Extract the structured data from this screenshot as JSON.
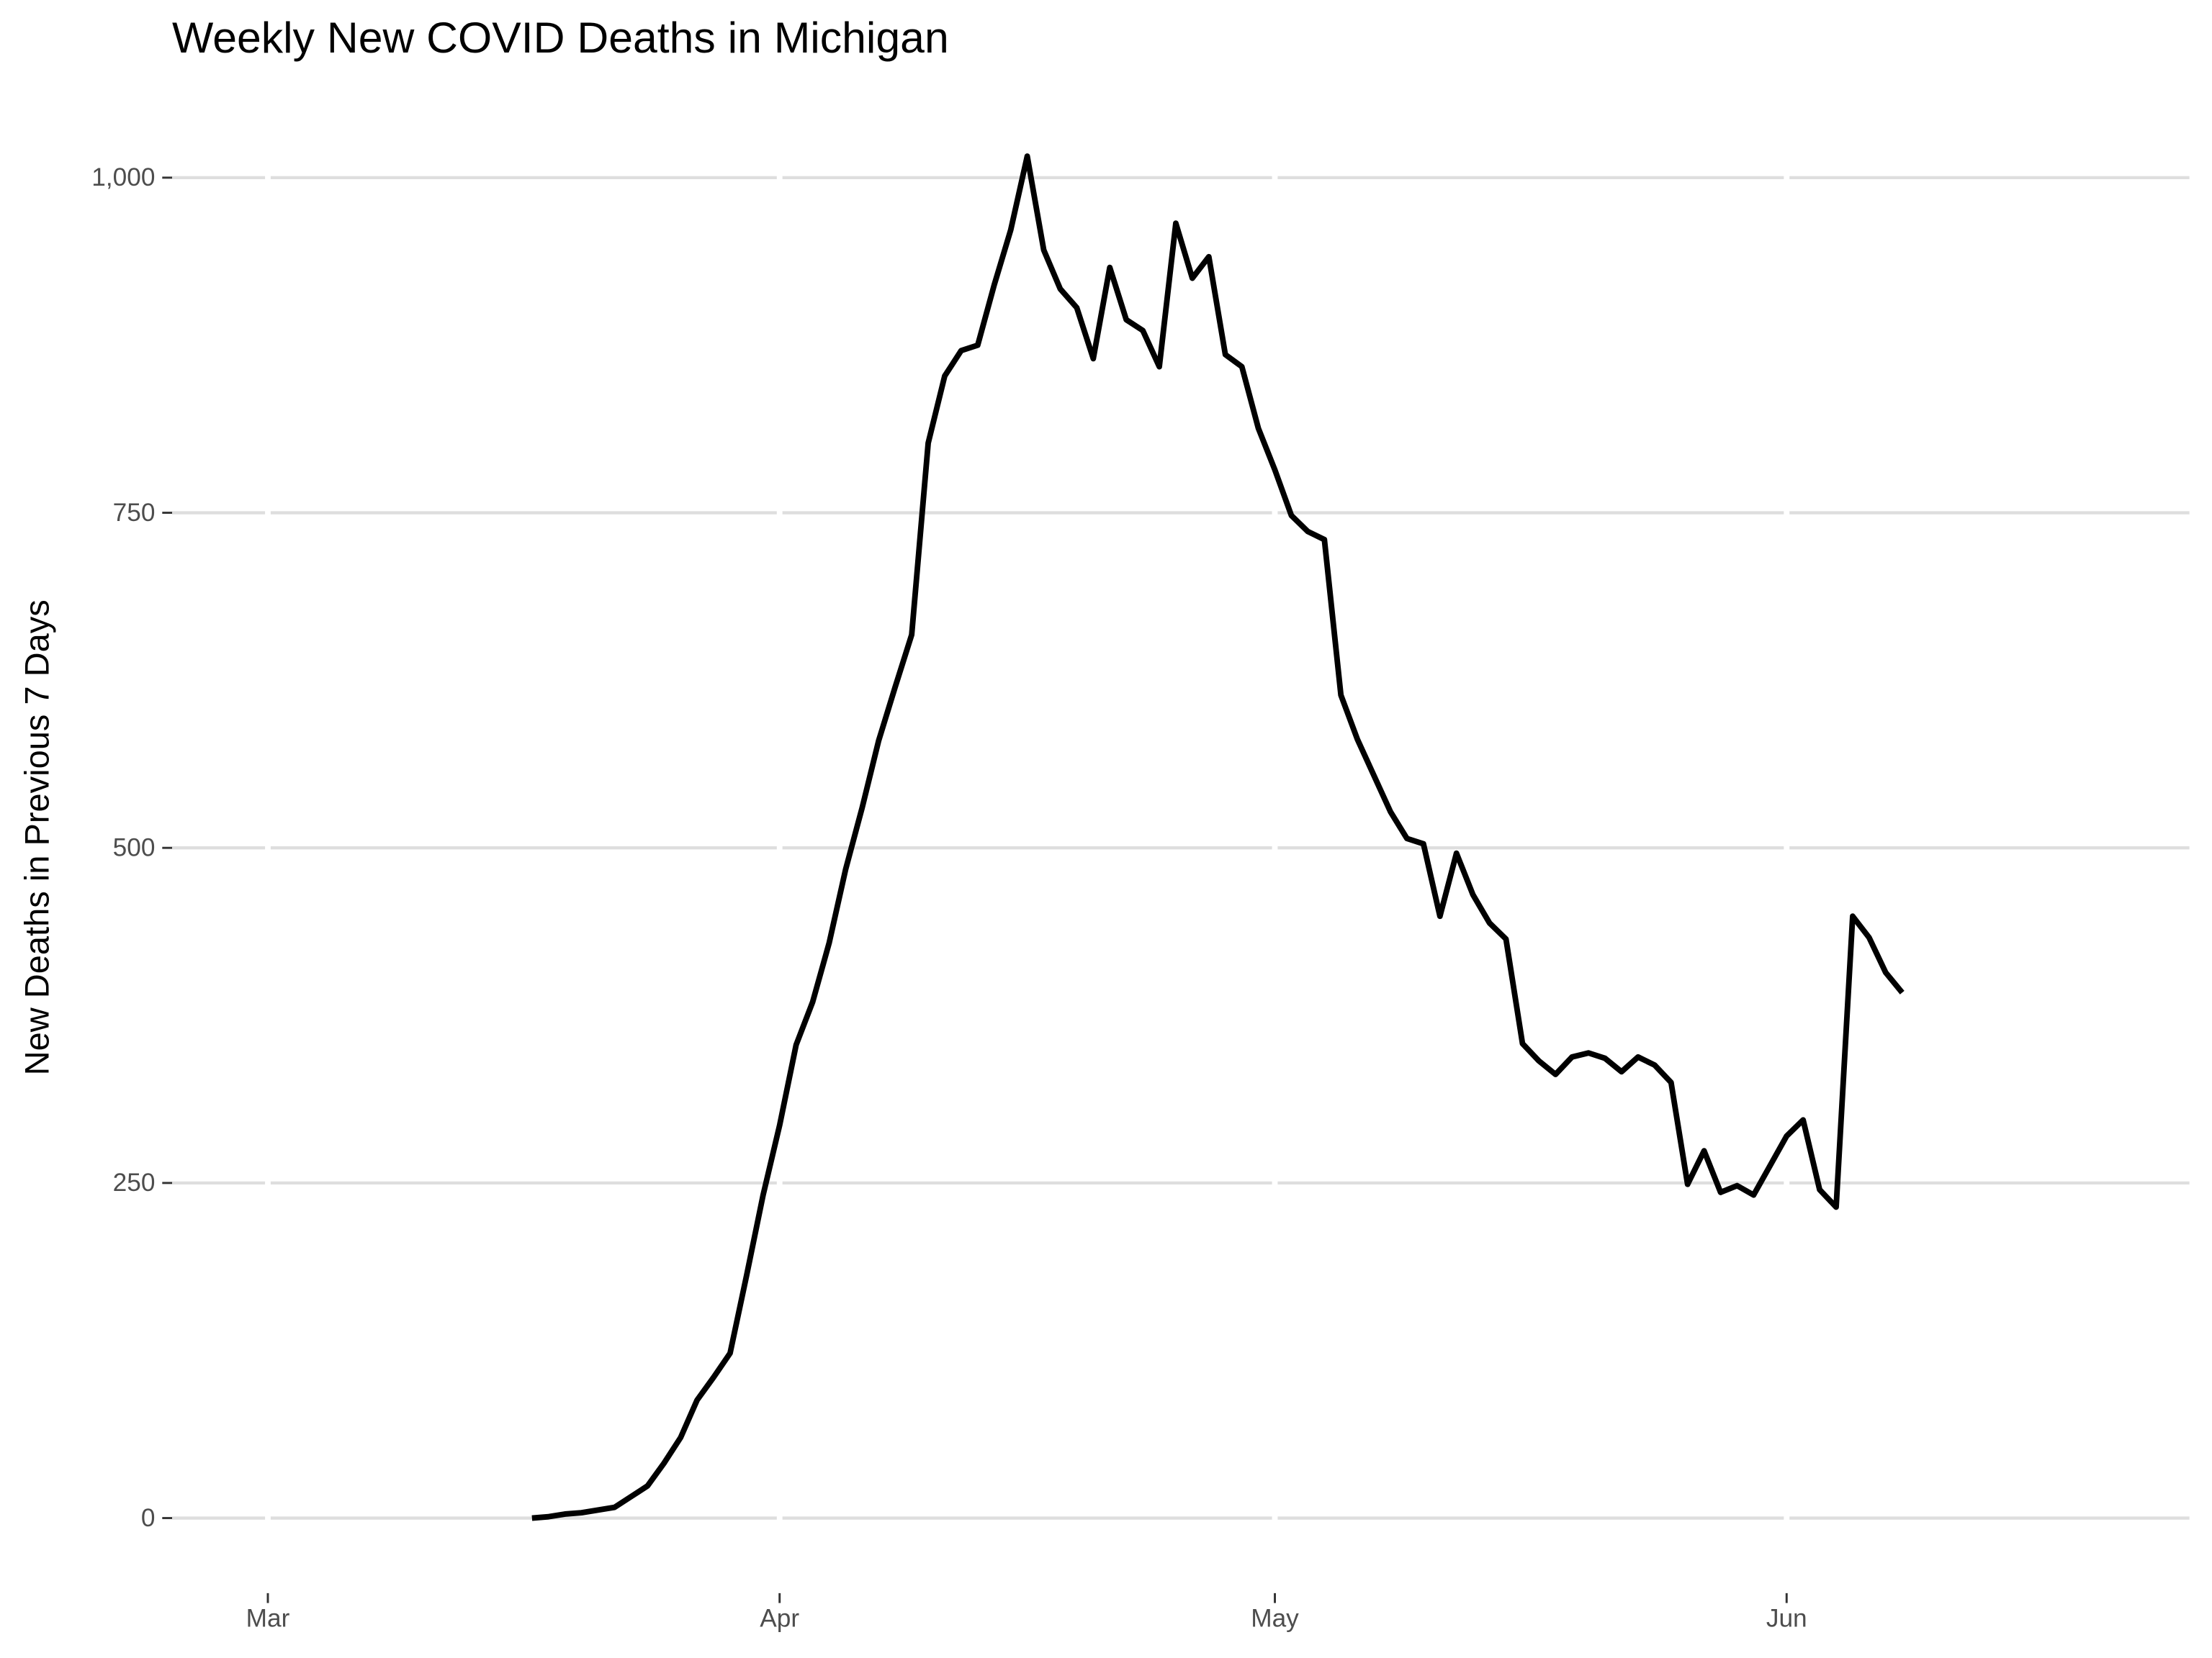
{
  "chart_data": {
    "type": "line",
    "title": "Weekly New COVID Deaths in Michigan",
    "y_label": "New Deaths in Previous 7 Days",
    "x": [
      16,
      17,
      18,
      19,
      20,
      21,
      22,
      23,
      24,
      25,
      26,
      27,
      28,
      29,
      30,
      31,
      32,
      33,
      34,
      35,
      36,
      37,
      38,
      39,
      40,
      41,
      42,
      43,
      44,
      45,
      46,
      47,
      48,
      49,
      50,
      51,
      52,
      53,
      54,
      55,
      56,
      57,
      58,
      59,
      60,
      61,
      62,
      63,
      64,
      65,
      66,
      67,
      68,
      69,
      70,
      71,
      72,
      73,
      74,
      75,
      76,
      77,
      78,
      79,
      80,
      81,
      82,
      83,
      84,
      85,
      86,
      87,
      88,
      89,
      90,
      91,
      92,
      93,
      94,
      95,
      96,
      97,
      98,
      99
    ],
    "series": [
      {
        "name": "New Deaths in Previous 7 Days",
        "color": "#000000",
        "values": [
          0,
          1,
          3,
          4,
          6,
          8,
          16,
          24,
          41,
          60,
          88,
          105,
          123,
          181,
          241,
          293,
          353,
          385,
          429,
          484,
          530,
          580,
          620,
          659,
          802,
          852,
          871,
          875,
          920,
          961,
          1016,
          946,
          917,
          903,
          865,
          933,
          894,
          886,
          859,
          966,
          925,
          941,
          868,
          859,
          813,
          782,
          748,
          736,
          730,
          614,
          581,
          554,
          527,
          507,
          503,
          449,
          496,
          465,
          444,
          432,
          354,
          341,
          331,
          344,
          347,
          343,
          333,
          344,
          338,
          325,
          249,
          274,
          243,
          248,
          241,
          263,
          285,
          297,
          245,
          232,
          449,
          433,
          407,
          392
        ]
      }
    ],
    "xlim": [
      -5.8,
      116.4
    ],
    "xticks": [
      {
        "value": 0,
        "label": "Mar"
      },
      {
        "value": 31,
        "label": "Apr"
      },
      {
        "value": 61,
        "label": "May"
      },
      {
        "value": 92,
        "label": "Jun"
      }
    ],
    "ylim": [
      -50.75,
      1065.75
    ],
    "yticks": [
      0,
      250,
      500,
      750,
      {
        "value": 1000,
        "label": "1,000"
      }
    ],
    "grid": true
  }
}
